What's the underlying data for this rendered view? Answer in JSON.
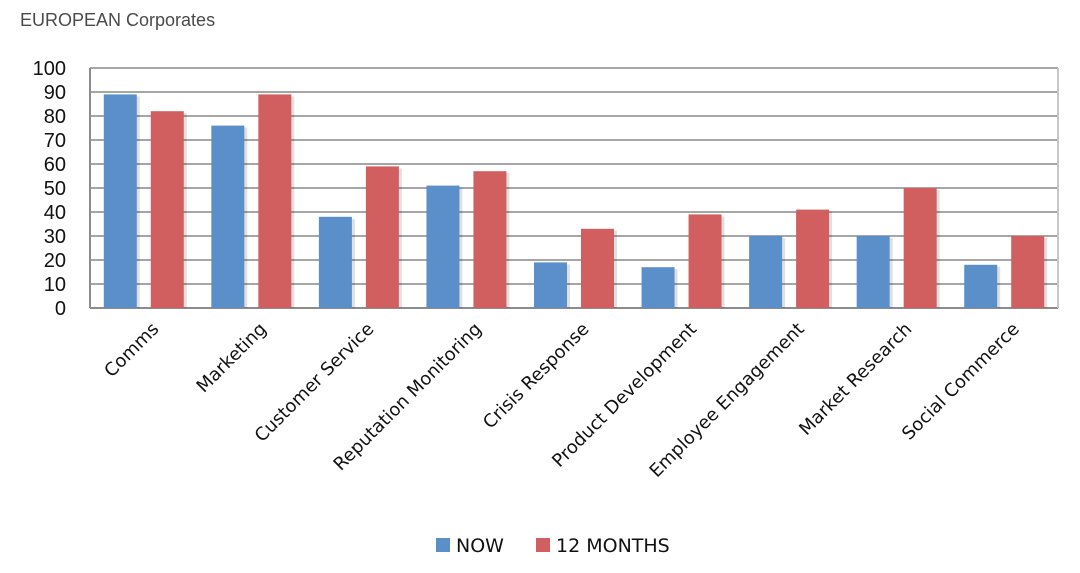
{
  "chart_data": {
    "type": "bar",
    "title": "EUROPEAN Corporates",
    "categories": [
      "Comms",
      "Marketing",
      "Customer Service",
      "Reputation Monitoring",
      "Crisis Response",
      "Product Development",
      "Employee Engagement",
      "Market Research",
      "Social Commerce"
    ],
    "series": [
      {
        "name": "NOW",
        "color": "#5b8fca",
        "values": [
          89,
          76,
          38,
          51,
          19,
          17,
          30,
          30,
          18
        ]
      },
      {
        "name": "12 MONTHS",
        "color": "#d25f5f",
        "values": [
          82,
          89,
          59,
          57,
          33,
          39,
          41,
          50,
          30
        ]
      }
    ],
    "ylim": [
      0,
      100
    ],
    "yticks": [
      0,
      10,
      20,
      30,
      40,
      50,
      60,
      70,
      80,
      90,
      100
    ],
    "grid": true,
    "legend_position": "bottom-center"
  }
}
